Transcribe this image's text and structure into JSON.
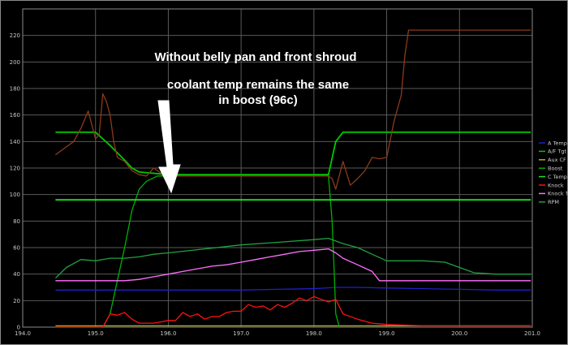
{
  "chart_data": {
    "type": "line",
    "xlim": [
      194.0,
      201.0
    ],
    "ylim": [
      0,
      240
    ],
    "x_ticks": [
      "194.0",
      "195.0",
      "196.0",
      "197.0",
      "198.0",
      "199.0",
      "200.0",
      "201.0"
    ],
    "y_ticks": [
      "0",
      "20",
      "40",
      "60",
      "80",
      "100",
      "120",
      "140",
      "160",
      "180",
      "200",
      "220"
    ],
    "grid": true,
    "legend_position": "right",
    "annotations": [
      "Without belly pan and front shroud",
      "coolant temp remains the same",
      "in boost (96c)"
    ],
    "colors": {
      "background": "#000000",
      "frame": "#8a8a8a",
      "grid": "#5a5a5a"
    },
    "series": [
      {
        "name": "A Temp",
        "color": "#2020c8",
        "x": [
          194.45,
          195.0,
          195.5,
          196.0,
          196.5,
          197.0,
          197.5,
          198.0,
          198.3,
          198.6,
          199.0,
          199.5,
          200.0,
          200.5,
          200.98
        ],
        "y": [
          28,
          28,
          28,
          28,
          28,
          28,
          28.5,
          29,
          30,
          30,
          29.5,
          29,
          28.5,
          28,
          28
        ]
      },
      {
        "name": "A/F Tgt",
        "color": "#00c800",
        "x": [
          194.45,
          194.8,
          195.0,
          195.2,
          195.4,
          195.5,
          195.6,
          195.8,
          196.0,
          196.5,
          197.0,
          197.5,
          198.0,
          198.2,
          198.3,
          198.4,
          198.6,
          199.0,
          200.0,
          200.98
        ],
        "y": [
          147,
          147,
          147,
          137,
          126,
          120,
          117,
          116,
          115,
          115,
          115,
          115,
          115,
          115,
          140,
          147,
          147,
          147,
          147,
          147
        ]
      },
      {
        "name": "Aux CF",
        "color": "#b0b020",
        "x": [
          194.45,
          195.0,
          195.5,
          196.0,
          196.5,
          197.0,
          197.5,
          198.0,
          198.5,
          199.0,
          199.5,
          200.0,
          200.5,
          200.98
        ],
        "y": [
          1,
          1,
          1,
          1,
          1,
          1,
          1,
          1,
          1,
          1,
          1,
          1,
          1,
          1
        ]
      },
      {
        "name": "Boost",
        "color": "#00b000",
        "x": [
          194.45,
          195.0,
          195.1,
          195.2,
          195.3,
          195.4,
          195.5,
          195.6,
          195.7,
          195.85,
          196.0,
          196.5,
          197.0,
          197.5,
          198.0,
          198.2,
          198.25,
          198.28,
          198.3,
          198.35
        ],
        "y": [
          0,
          0,
          0,
          10,
          35,
          60,
          88,
          104,
          110,
          114,
          114,
          114,
          114,
          114,
          114,
          114,
          80,
          40,
          10,
          0
        ]
      },
      {
        "name": "C Temp",
        "color": "#20e020",
        "x": [
          194.45,
          195.0,
          195.5,
          196.0,
          196.5,
          197.0,
          197.5,
          198.0,
          198.5,
          199.0,
          199.5,
          200.0,
          200.5,
          200.98
        ],
        "y": [
          96,
          96,
          96,
          96,
          96,
          96,
          96,
          96,
          96,
          96,
          96,
          96,
          96,
          96
        ]
      },
      {
        "name": "Knock",
        "color": "#ff1010",
        "x": [
          194.45,
          195.0,
          195.1,
          195.2,
          195.3,
          195.4,
          195.5,
          195.6,
          195.7,
          195.8,
          195.9,
          196.0,
          196.1,
          196.2,
          196.3,
          196.4,
          196.5,
          196.6,
          196.7,
          196.8,
          196.9,
          197.0,
          197.1,
          197.2,
          197.3,
          197.4,
          197.5,
          197.6,
          197.7,
          197.8,
          197.9,
          198.0,
          198.1,
          198.2,
          198.3,
          198.4,
          198.6,
          198.8,
          199.0,
          199.5,
          200.0,
          200.5,
          200.98
        ],
        "y": [
          0,
          0,
          0,
          10,
          9,
          11,
          6,
          3,
          3,
          3,
          4,
          5,
          5,
          11,
          8,
          10,
          6,
          8,
          8,
          11,
          12,
          12,
          17,
          15,
          16,
          13,
          17,
          15,
          18,
          22,
          20,
          23,
          21,
          19,
          21,
          10,
          6,
          3,
          2,
          1,
          1,
          1,
          1
        ]
      },
      {
        "name": "Knock T",
        "color": "#ff70ff",
        "x": [
          194.45,
          195.0,
          195.2,
          195.4,
          195.6,
          195.8,
          196.0,
          196.2,
          196.4,
          196.6,
          196.8,
          197.0,
          197.2,
          197.4,
          197.6,
          197.8,
          198.0,
          198.2,
          198.3,
          198.4,
          198.6,
          198.8,
          198.9,
          199.0,
          199.5,
          200.0,
          200.5,
          200.98
        ],
        "y": [
          35,
          35,
          35,
          35,
          36,
          38,
          40,
          42,
          44,
          46,
          47,
          49,
          51,
          53,
          55,
          57,
          58,
          59,
          56,
          52,
          47,
          42,
          35,
          35,
          35,
          35,
          35,
          35
        ]
      },
      {
        "name": "RPM",
        "color": "#20a040",
        "x": [
          194.45,
          194.6,
          194.8,
          195.0,
          195.2,
          195.4,
          195.6,
          195.8,
          196.0,
          196.5,
          197.0,
          197.5,
          198.0,
          198.2,
          198.4,
          198.6,
          198.8,
          199.0,
          199.2,
          199.5,
          199.8,
          200.0,
          200.2,
          200.5,
          200.98
        ],
        "y": [
          37,
          45,
          51,
          50,
          52,
          52,
          53,
          55,
          56,
          59,
          62,
          64,
          66,
          67,
          63,
          60,
          55,
          50,
          50,
          50,
          49,
          45,
          41,
          40,
          40
        ]
      },
      {
        "name": "",
        "color": "#8b3a1a",
        "x": [
          194.45,
          194.6,
          194.7,
          194.8,
          194.9,
          195.0,
          195.05,
          195.1,
          195.15,
          195.2,
          195.25,
          195.3,
          195.4,
          195.5,
          195.6,
          195.7,
          195.8,
          195.9,
          196.0,
          196.5,
          197.0,
          197.5,
          198.0,
          198.2,
          198.25,
          198.3,
          198.4,
          198.5,
          198.6,
          198.7,
          198.8,
          198.9,
          199.0,
          199.1,
          199.2,
          199.25,
          199.3,
          199.5,
          200.0,
          200.5,
          200.98
        ],
        "y": [
          130,
          136,
          140,
          150,
          163,
          142,
          145,
          176,
          170,
          160,
          140,
          128,
          125,
          118,
          115,
          114,
          120,
          116,
          114,
          114,
          114,
          114,
          114,
          114,
          112,
          104,
          125,
          107,
          112,
          118,
          128,
          127,
          128,
          155,
          175,
          205,
          224,
          224,
          224,
          224,
          224
        ]
      }
    ]
  }
}
